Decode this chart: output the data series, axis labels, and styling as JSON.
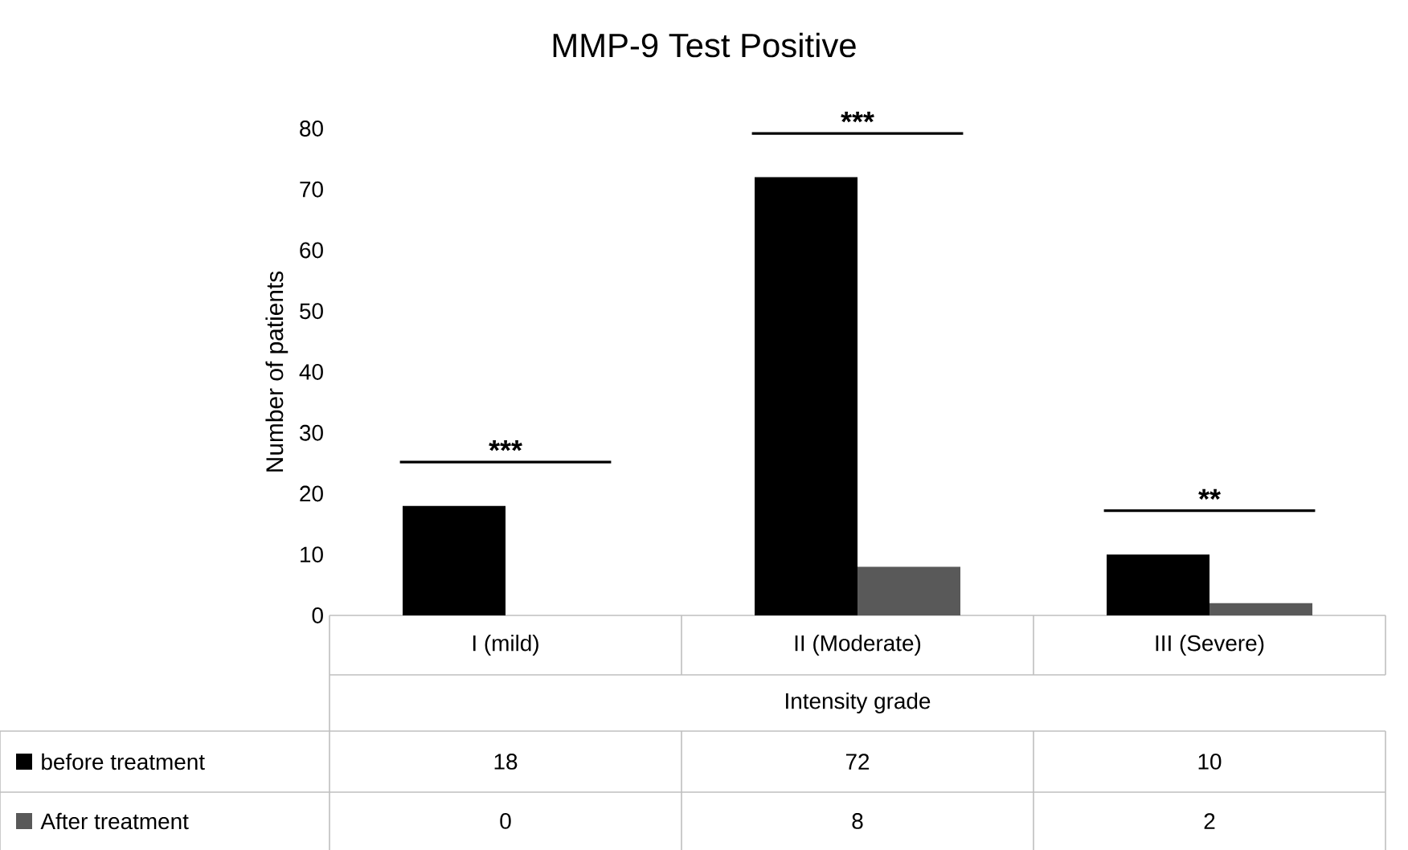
{
  "chart_data": {
    "type": "bar",
    "title": "MMP-9 Test Positive",
    "xlabel": "Intensity grade",
    "ylabel": "Number of patients",
    "categories": [
      "I (mild)",
      "II (Moderate)",
      "III (Severe)"
    ],
    "series": [
      {
        "name": "before treatment",
        "color": "#000000",
        "values": [
          18,
          72,
          10
        ]
      },
      {
        "name": "After treatment",
        "color": "#595959",
        "values": [
          0,
          8,
          2
        ]
      }
    ],
    "ylim": [
      0,
      80
    ],
    "yticks": [
      0,
      10,
      20,
      30,
      40,
      50,
      60,
      70,
      80
    ],
    "data_labels": true,
    "legend": "bottom",
    "grid": false,
    "annotations": [
      "***",
      "***",
      "**"
    ]
  }
}
